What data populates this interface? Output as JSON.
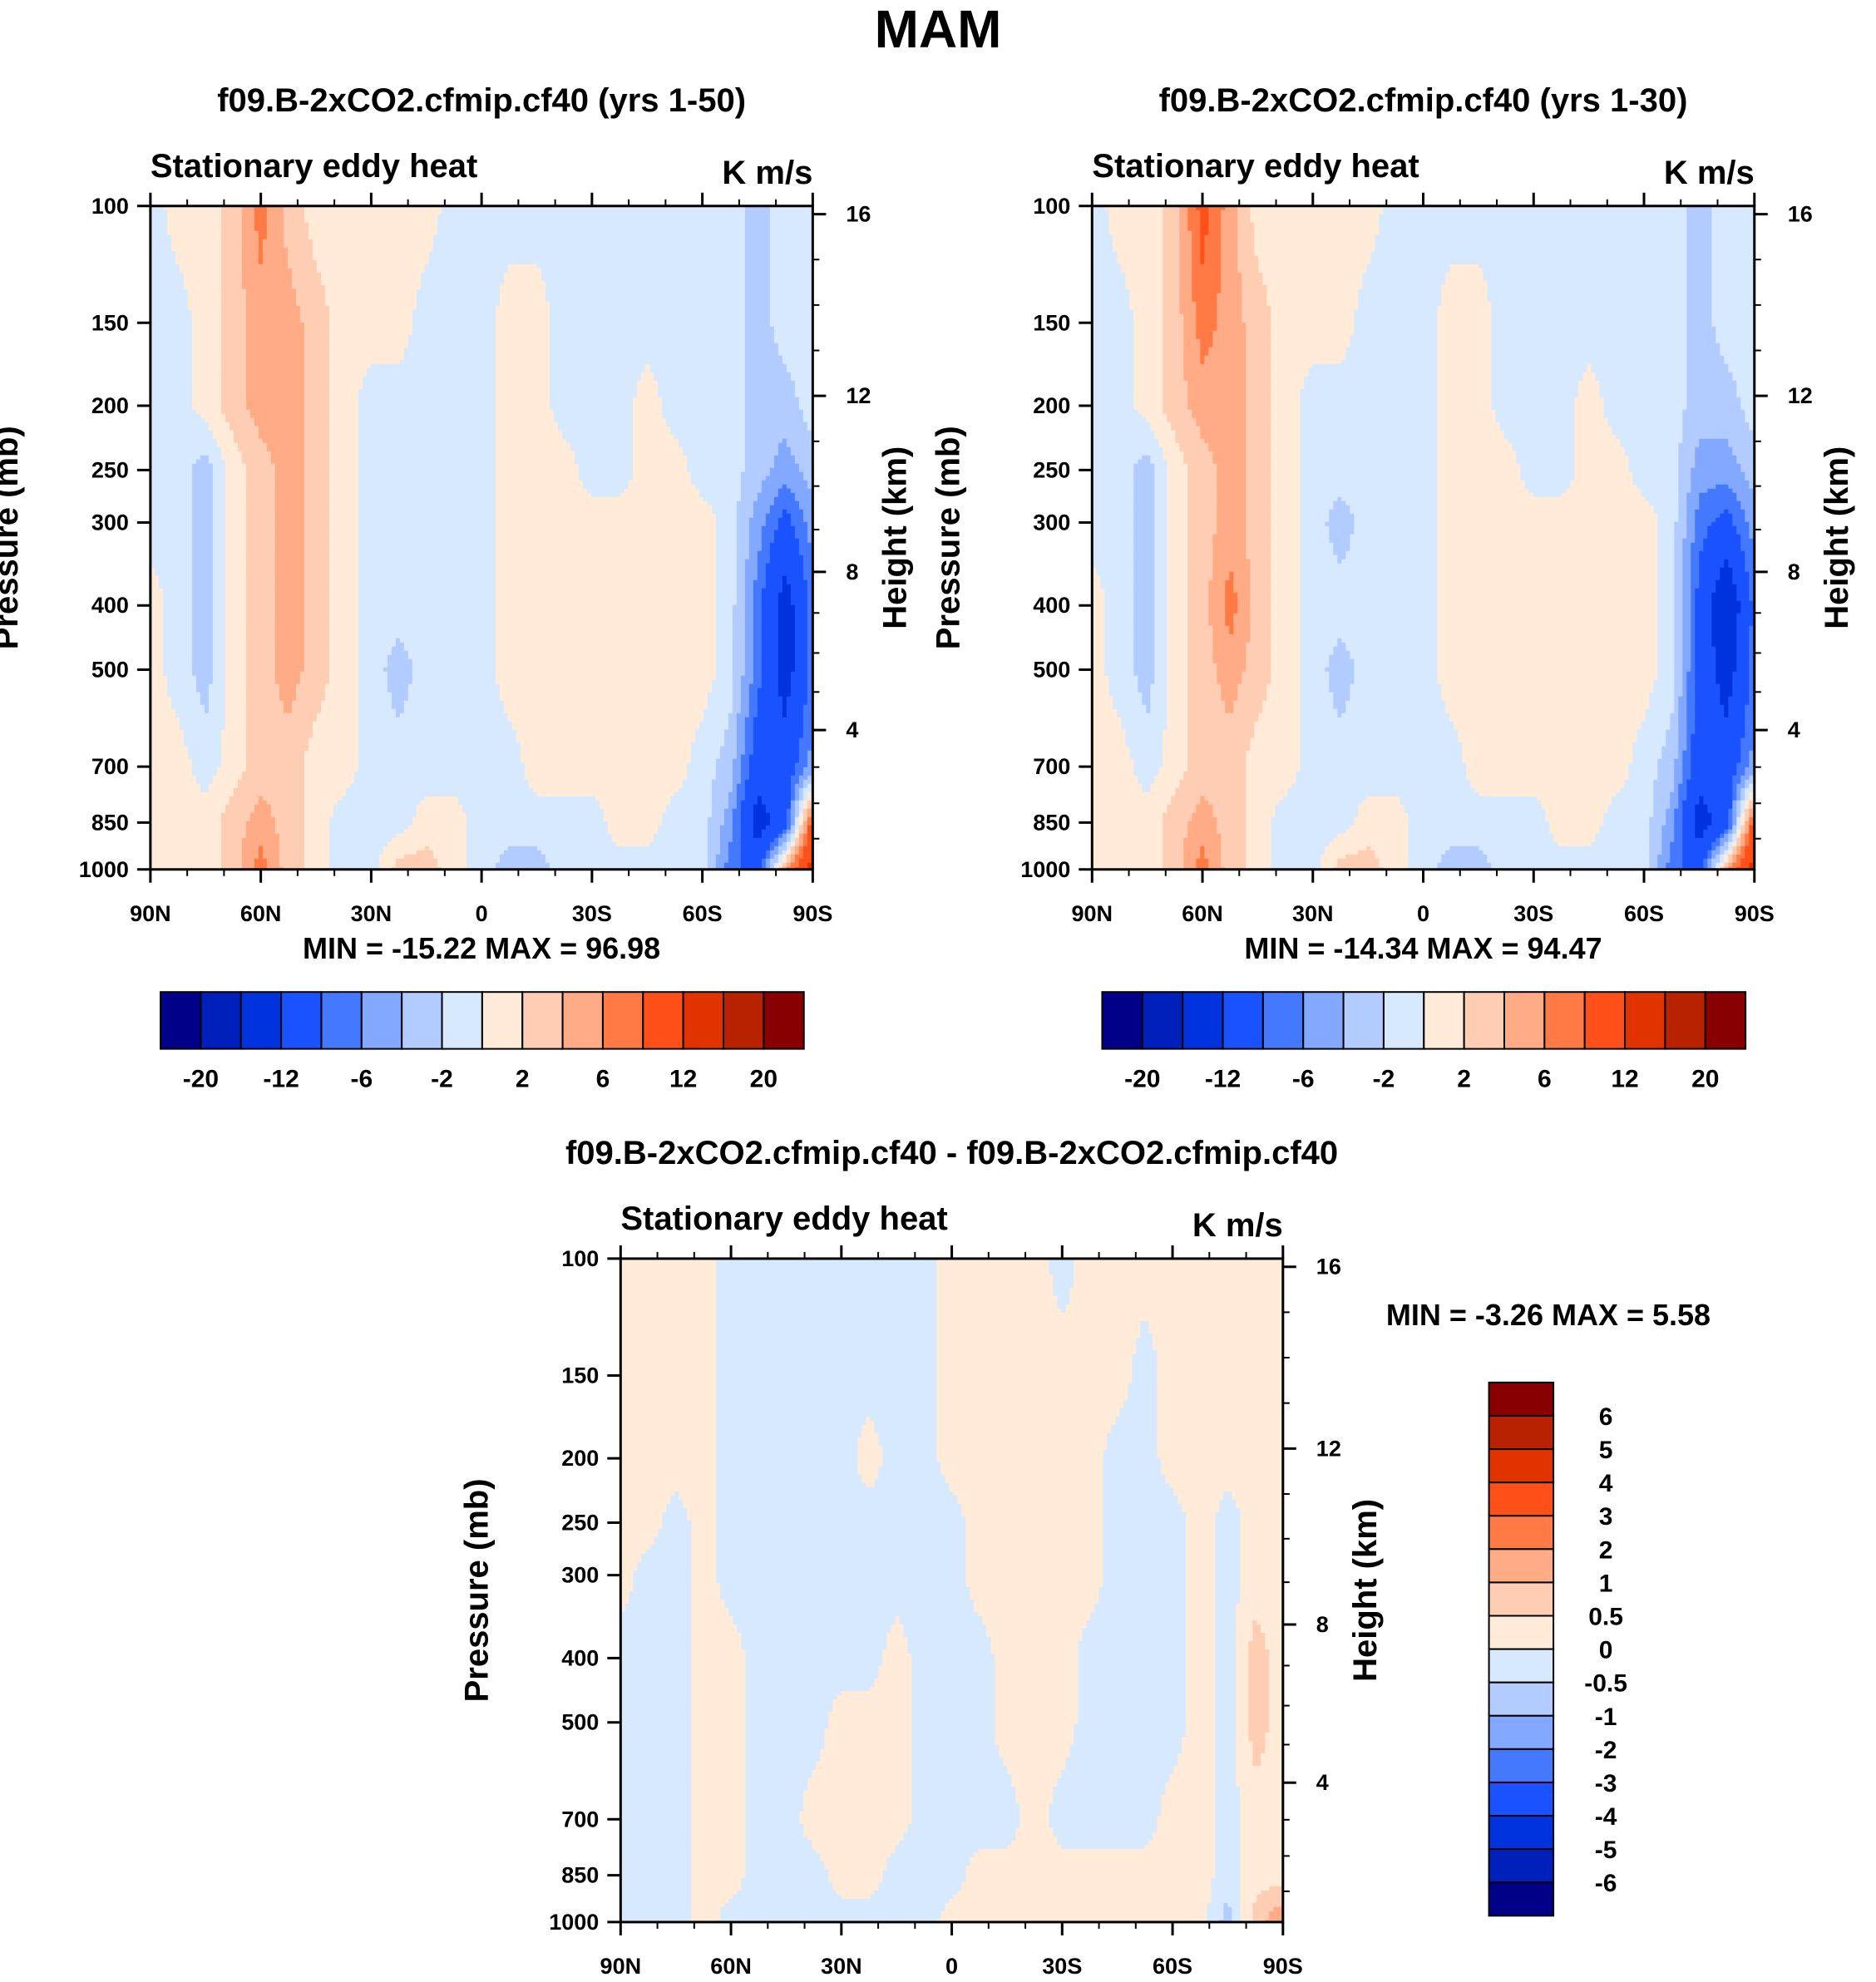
{
  "title": "MAM",
  "colors": [
    "#000088",
    "#0020bb",
    "#0033dd",
    "#1a52ff",
    "#4478ff",
    "#82a8ff",
    "#b3ccff",
    "#d6e9ff",
    "#ffebd8",
    "#ffcdb3",
    "#ffab85",
    "#ff7a45",
    "#ff501a",
    "#e03300",
    "#b82200",
    "#880000"
  ],
  "chart_data": [
    {
      "type": "heatmap",
      "title": "f09.B-2xCO2.cfmip.cf40 (yrs 1-50)",
      "left_string": "Stationary eddy heat",
      "right_string": "K m/s",
      "min_max": "MIN = -15.22  MAX =  96.98",
      "ylabel": "Pressure (mb)",
      "ylabel_right": "Height (km)",
      "x_lat": [
        90,
        82.5,
        75,
        67.5,
        60,
        52.5,
        45,
        37.5,
        30,
        22.5,
        15,
        7.5,
        0,
        -7.5,
        -15,
        -22.5,
        -30,
        -37.5,
        -45,
        -52.5,
        -60,
        -67.5,
        -75,
        -82.5,
        -90
      ],
      "y_pressure": [
        100,
        150,
        200,
        250,
        300,
        400,
        500,
        700,
        850,
        1000
      ],
      "xticklabels": [
        "90N",
        "60N",
        "30N",
        "0",
        "30S",
        "60S",
        "90S"
      ],
      "xticks": [
        90,
        60,
        30,
        0,
        -30,
        -60,
        -90
      ],
      "yticks": [
        100,
        150,
        200,
        250,
        300,
        400,
        500,
        700,
        850,
        1000
      ],
      "yticklabels": [
        "100",
        "150",
        "200",
        "250",
        "300",
        "400",
        "500",
        "700",
        "850",
        "1000"
      ],
      "height_ticks": [
        4,
        8,
        12,
        16
      ],
      "height_ticklabels": [
        "4",
        "8",
        "12",
        "16"
      ],
      "levels": [
        -20,
        -16,
        -12,
        -8,
        -6,
        -4,
        -2,
        0,
        2,
        4,
        6,
        8,
        12,
        16,
        20
      ],
      "colorbar_labels": [
        "-20",
        "-12",
        "-6",
        "-2",
        "2",
        "6",
        "12",
        "20"
      ],
      "colorbar_orientation": "horizontal",
      "values": [
        [
          -1,
          1,
          1,
          3,
          7,
          3,
          1,
          1,
          1,
          1,
          1,
          -1,
          -1,
          -1,
          -1,
          -1,
          -1,
          -1,
          -1,
          -1,
          -1,
          -1,
          -3,
          -1,
          -1
        ],
        [
          -1,
          -1,
          1,
          3,
          5,
          5,
          3,
          1,
          1,
          1,
          -1,
          -1,
          -1,
          1,
          1,
          -1,
          -1,
          -1,
          -1,
          -1,
          -1,
          -1,
          -3,
          -1,
          -1
        ],
        [
          -1,
          -1,
          1,
          3,
          5,
          5,
          3,
          1,
          -1,
          -1,
          -1,
          -1,
          -1,
          1,
          1,
          -1,
          -1,
          -1,
          1,
          -1,
          -1,
          -1,
          -3,
          -3,
          -1
        ],
        [
          -1,
          -1,
          -3,
          1,
          3,
          5,
          3,
          1,
          -1,
          -1,
          -1,
          -1,
          -1,
          1,
          1,
          1,
          -1,
          -1,
          1,
          1,
          -1,
          -1,
          -3,
          -5,
          -3
        ],
        [
          -1,
          -1,
          -3,
          1,
          3,
          5,
          3,
          1,
          -1,
          -1,
          -1,
          -1,
          -1,
          1,
          1,
          1,
          1,
          1,
          1,
          1,
          1,
          -1,
          -5,
          -9,
          -5
        ],
        [
          1,
          -1,
          -3,
          1,
          3,
          5,
          3,
          1,
          -1,
          -1,
          -1,
          -1,
          -1,
          1,
          1,
          1,
          1,
          1,
          1,
          1,
          1,
          -1,
          -7,
          -14,
          -7
        ],
        [
          1,
          -1,
          -3,
          1,
          3,
          5,
          3,
          1,
          -1,
          -3,
          -1,
          -1,
          -1,
          1,
          1,
          1,
          1,
          1,
          1,
          1,
          1,
          -1,
          -7,
          -14,
          -7
        ],
        [
          1,
          1,
          -1,
          1,
          3,
          3,
          1,
          1,
          -1,
          -1,
          -1,
          -1,
          -1,
          -1,
          1,
          1,
          1,
          1,
          1,
          1,
          -1,
          -3,
          -10,
          -10,
          -5
        ],
        [
          1,
          1,
          1,
          3,
          5,
          3,
          1,
          -1,
          -1,
          -1,
          1,
          1,
          -1,
          -1,
          -1,
          -1,
          -1,
          1,
          1,
          -1,
          -1,
          -5,
          -14,
          -10,
          10
        ],
        [
          1,
          1,
          1,
          3,
          7,
          3,
          1,
          -1,
          -1,
          3,
          3,
          1,
          -1,
          -3,
          -3,
          -1,
          -1,
          -1,
          -1,
          -1,
          -1,
          -7,
          -10,
          5,
          14
        ]
      ]
    },
    {
      "type": "heatmap",
      "title": "f09.B-2xCO2.cfmip.cf40 (yrs 1-30)",
      "left_string": "Stationary eddy heat",
      "right_string": "K m/s",
      "min_max": "MIN = -14.34  MAX =  94.47",
      "ylabel": "Pressure (mb)",
      "ylabel_right": "Height (km)",
      "x_lat": [
        90,
        82.5,
        75,
        67.5,
        60,
        52.5,
        45,
        37.5,
        30,
        22.5,
        15,
        7.5,
        0,
        -7.5,
        -15,
        -22.5,
        -30,
        -37.5,
        -45,
        -52.5,
        -60,
        -67.5,
        -75,
        -82.5,
        -90
      ],
      "y_pressure": [
        100,
        150,
        200,
        250,
        300,
        400,
        500,
        700,
        850,
        1000
      ],
      "xticklabels": [
        "90N",
        "60N",
        "30N",
        "0",
        "30S",
        "60S",
        "90S"
      ],
      "xticks": [
        90,
        60,
        30,
        0,
        -30,
        -60,
        -90
      ],
      "yticks": [
        100,
        150,
        200,
        250,
        300,
        400,
        500,
        700,
        850,
        1000
      ],
      "yticklabels": [
        "100",
        "150",
        "200",
        "250",
        "300",
        "400",
        "500",
        "700",
        "850",
        "1000"
      ],
      "height_ticks": [
        4,
        8,
        12,
        16
      ],
      "height_ticklabels": [
        "4",
        "8",
        "12",
        "16"
      ],
      "levels": [
        -20,
        -16,
        -12,
        -8,
        -6,
        -4,
        -2,
        0,
        2,
        4,
        6,
        8,
        12,
        16,
        20
      ],
      "colorbar_labels": [
        "-20",
        "-12",
        "-6",
        "-2",
        "2",
        "6",
        "12",
        "20"
      ],
      "colorbar_orientation": "horizontal",
      "values": [
        [
          -1,
          1,
          1,
          3,
          9,
          5,
          1,
          1,
          1,
          1,
          1,
          -1,
          -1,
          -1,
          -1,
          -1,
          -1,
          -1,
          -1,
          -1,
          -1,
          -1,
          -3,
          -1,
          -1
        ],
        [
          -1,
          -1,
          1,
          3,
          7,
          5,
          3,
          1,
          1,
          1,
          -1,
          -1,
          -1,
          1,
          1,
          -1,
          -1,
          -1,
          -1,
          -1,
          -1,
          -1,
          -3,
          -1,
          -1
        ],
        [
          -1,
          -1,
          1,
          3,
          5,
          5,
          3,
          1,
          -1,
          -1,
          -1,
          -1,
          -1,
          1,
          1,
          -1,
          -1,
          -1,
          1,
          -1,
          -1,
          -1,
          -3,
          -3,
          -1
        ],
        [
          -1,
          -1,
          -3,
          1,
          3,
          5,
          3,
          1,
          -1,
          -1,
          -1,
          -1,
          -1,
          1,
          1,
          1,
          -1,
          -1,
          1,
          1,
          -1,
          -1,
          -5,
          -5,
          -3
        ],
        [
          -1,
          -1,
          -3,
          1,
          3,
          5,
          3,
          1,
          -1,
          -3,
          -1,
          -1,
          -1,
          1,
          1,
          1,
          1,
          1,
          1,
          1,
          1,
          -1,
          -7,
          -9,
          -5
        ],
        [
          1,
          -1,
          -3,
          1,
          3,
          7,
          3,
          1,
          -1,
          -1,
          -1,
          -1,
          -1,
          1,
          1,
          1,
          1,
          1,
          1,
          1,
          1,
          -1,
          -9,
          -16,
          -7
        ],
        [
          1,
          -1,
          -3,
          1,
          3,
          5,
          3,
          1,
          -1,
          -3,
          -1,
          -1,
          -1,
          1,
          1,
          1,
          1,
          1,
          1,
          1,
          1,
          -1,
          -9,
          -14,
          -7
        ],
        [
          1,
          1,
          -1,
          1,
          3,
          3,
          1,
          1,
          -1,
          -1,
          -1,
          -1,
          -1,
          -1,
          1,
          1,
          1,
          1,
          1,
          1,
          -1,
          -3,
          -10,
          -10,
          -5
        ],
        [
          1,
          1,
          1,
          3,
          5,
          3,
          1,
          -1,
          -1,
          -1,
          1,
          1,
          -1,
          -1,
          -1,
          -1,
          -1,
          1,
          1,
          -1,
          -1,
          -5,
          -14,
          -10,
          10
        ],
        [
          1,
          1,
          1,
          3,
          7,
          3,
          1,
          -1,
          -1,
          3,
          3,
          1,
          -1,
          -3,
          -3,
          -1,
          -1,
          -1,
          -1,
          -1,
          -1,
          -7,
          -10,
          5,
          14
        ]
      ]
    },
    {
      "type": "heatmap",
      "title": "f09.B-2xCO2.cfmip.cf40 - f09.B-2xCO2.cfmip.cf40",
      "left_string": "Stationary eddy heat",
      "right_string": "K m/s",
      "min_max": "MIN =  -3.26  MAX =   5.58",
      "ylabel": "Pressure (mb)",
      "ylabel_right": "Height (km)",
      "x_lat": [
        90,
        82.5,
        75,
        67.5,
        60,
        52.5,
        45,
        37.5,
        30,
        22.5,
        15,
        7.5,
        0,
        -7.5,
        -15,
        -22.5,
        -30,
        -37.5,
        -45,
        -52.5,
        -60,
        -67.5,
        -75,
        -82.5,
        -90
      ],
      "y_pressure": [
        100,
        150,
        200,
        250,
        300,
        400,
        500,
        700,
        850,
        1000
      ],
      "xticklabels": [
        "90N",
        "60N",
        "30N",
        "0",
        "30S",
        "60S",
        "90S"
      ],
      "xticks": [
        90,
        60,
        30,
        0,
        -30,
        -60,
        -90
      ],
      "yticks": [
        100,
        150,
        200,
        250,
        300,
        400,
        500,
        700,
        850,
        1000
      ],
      "yticklabels": [
        "100",
        "150",
        "200",
        "250",
        "300",
        "400",
        "500",
        "700",
        "850",
        "1000"
      ],
      "height_ticks": [
        4,
        8,
        12,
        16
      ],
      "height_ticklabels": [
        "4",
        "8",
        "12",
        "16"
      ],
      "levels": [
        -6,
        -5,
        -4,
        -3,
        -2,
        -1,
        -0.5,
        0,
        0.5,
        1,
        2,
        3,
        4,
        5,
        6
      ],
      "colorbar_labels": [
        "6",
        "5",
        "4",
        "3",
        "2",
        "1",
        "0.5",
        "0",
        "-0.5",
        "-1",
        "-2",
        "-3",
        "-4",
        "-5",
        "-6"
      ],
      "colorbar_orientation": "vertical",
      "values": [
        [
          0.25,
          0.25,
          0.25,
          0.25,
          -0.25,
          -0.25,
          -0.25,
          -0.25,
          -0.25,
          -0.25,
          -0.25,
          -0.25,
          0.25,
          0.25,
          0.25,
          0.25,
          -0.25,
          0.25,
          0.25,
          0.25,
          0.25,
          0.25,
          0.25,
          0.25,
          0.25
        ],
        [
          0.25,
          0.25,
          0.25,
          0.25,
          -0.25,
          -0.25,
          -0.25,
          -0.25,
          -0.25,
          -0.25,
          -0.25,
          -0.25,
          0.25,
          0.25,
          0.25,
          0.25,
          0.25,
          0.25,
          0.25,
          -0.25,
          0.25,
          0.25,
          0.25,
          0.25,
          0.25
        ],
        [
          0.25,
          0.25,
          0.25,
          0.25,
          -0.25,
          -0.25,
          -0.25,
          -0.25,
          -0.25,
          0.25,
          -0.25,
          -0.25,
          0.25,
          0.25,
          0.25,
          0.25,
          0.25,
          0.25,
          -0.25,
          -0.25,
          0.25,
          0.25,
          0.25,
          0.25,
          0.25
        ],
        [
          0.25,
          0.25,
          -0.25,
          0.25,
          -0.25,
          -0.25,
          -0.25,
          -0.25,
          -0.25,
          -0.25,
          -0.25,
          -0.25,
          -0.25,
          0.25,
          0.25,
          0.25,
          0.25,
          0.25,
          -0.25,
          -0.25,
          -0.25,
          0.25,
          -0.25,
          0.25,
          0.25
        ],
        [
          0.25,
          -0.25,
          -0.25,
          0.25,
          -0.25,
          -0.25,
          -0.25,
          -0.25,
          -0.25,
          -0.25,
          -0.25,
          -0.25,
          -0.25,
          0.25,
          0.25,
          0.25,
          0.25,
          0.25,
          -0.25,
          -0.25,
          -0.25,
          0.25,
          -0.25,
          0.25,
          0.25
        ],
        [
          -0.25,
          -0.25,
          -0.25,
          0.25,
          0.25,
          -0.25,
          -0.25,
          -0.25,
          -0.25,
          -0.25,
          0.25,
          -0.25,
          -0.25,
          -0.25,
          0.25,
          0.25,
          0.25,
          -0.25,
          -0.25,
          -0.25,
          -0.25,
          0.25,
          -0.25,
          0.75,
          0.25
        ],
        [
          -0.25,
          -0.25,
          -0.25,
          0.25,
          0.25,
          -0.25,
          -0.25,
          -0.25,
          0.25,
          0.25,
          0.25,
          -0.25,
          -0.25,
          -0.25,
          0.25,
          0.25,
          0.25,
          -0.25,
          -0.25,
          -0.25,
          -0.25,
          0.25,
          -0.25,
          0.75,
          0.25
        ],
        [
          -0.25,
          -0.25,
          -0.25,
          0.25,
          0.25,
          -0.25,
          -0.25,
          0.25,
          0.25,
          0.25,
          0.25,
          -0.25,
          -0.25,
          -0.25,
          -0.25,
          0.25,
          -0.25,
          -0.25,
          -0.25,
          -0.25,
          0.25,
          0.25,
          -0.25,
          0.25,
          0.25
        ],
        [
          -0.25,
          -0.25,
          -0.25,
          0.25,
          0.25,
          -0.25,
          -0.25,
          -0.25,
          0.25,
          0.25,
          -0.25,
          -0.25,
          -0.25,
          0.25,
          0.25,
          0.25,
          0.25,
          0.25,
          0.25,
          0.25,
          0.25,
          0.25,
          -0.25,
          0.25,
          0.25
        ],
        [
          -0.25,
          -0.25,
          -0.25,
          0.25,
          -0.25,
          -0.25,
          -0.25,
          -0.25,
          -0.25,
          -0.25,
          -0.25,
          -0.25,
          0.25,
          0.25,
          0.25,
          0.25,
          0.25,
          0.25,
          0.25,
          0.25,
          0.25,
          0.25,
          -0.75,
          0.75,
          1.5
        ]
      ]
    }
  ]
}
